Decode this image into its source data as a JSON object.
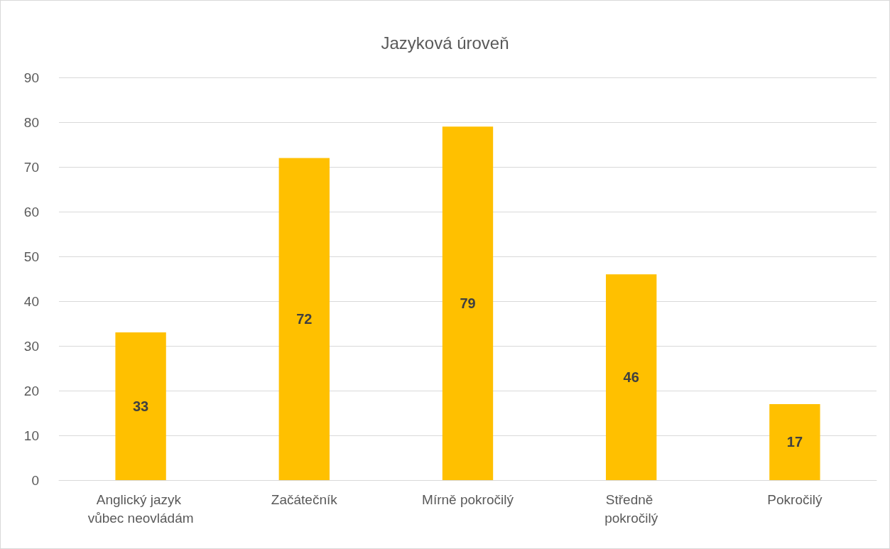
{
  "chart_data": {
    "type": "bar",
    "title": "Jazyková úroveň",
    "categories": [
      "Anglický jazyk vůbec neovládám",
      "Začátečník",
      "Mírně pokročilý",
      "Středně pokročilý",
      "Pokročilý"
    ],
    "values": [
      33,
      72,
      79,
      46,
      17
    ],
    "color": "#ffc000",
    "ylim": [
      0,
      90
    ],
    "yticks": [
      0,
      10,
      20,
      30,
      40,
      50,
      60,
      70,
      80,
      90
    ],
    "grid": "y",
    "data_labels": true
  }
}
